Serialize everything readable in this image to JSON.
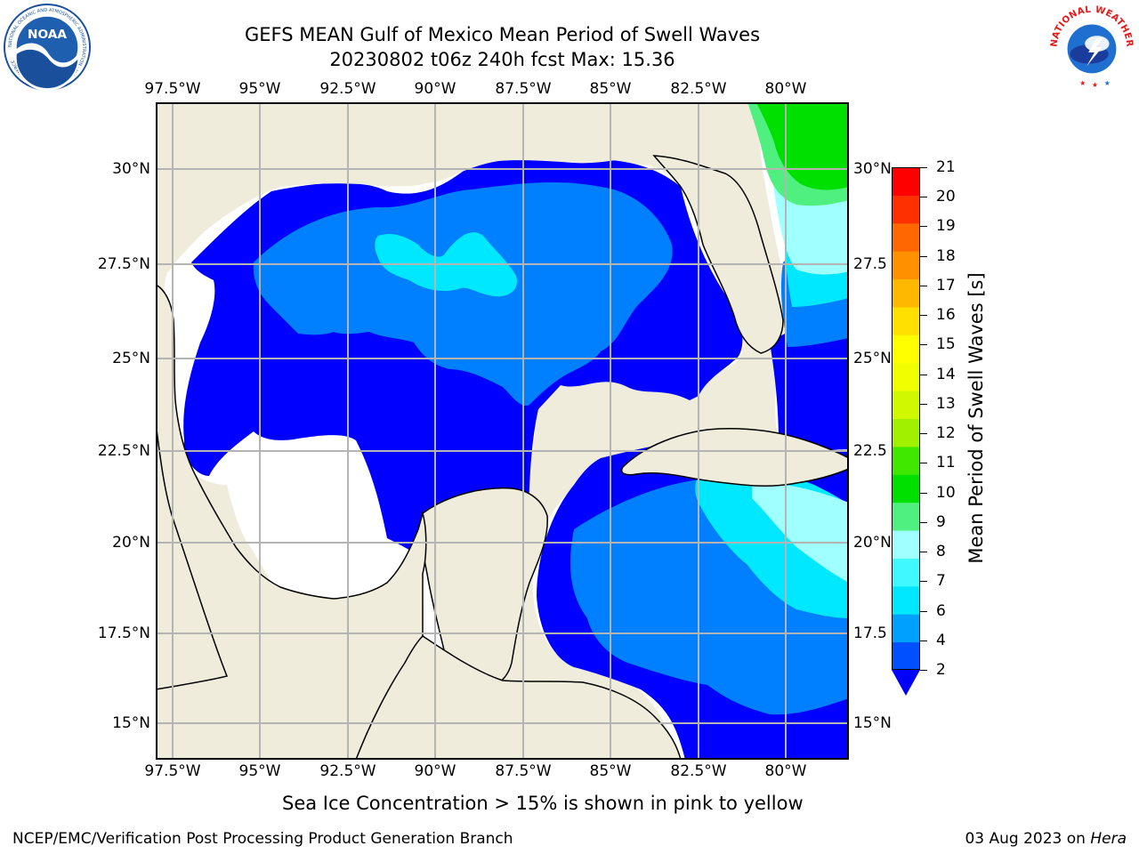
{
  "header": {
    "title_line1": "GEFS MEAN Gulf of Mexico Mean Period of Swell Waves",
    "title_line2": "20230802 t06z 240h fcst   Max: 15.36"
  },
  "logos": {
    "left": "NOAA",
    "left_ring": "NATIONAL OCEANIC AND ATMOSPHERIC ADMINISTRATION · U.S. DEPARTMENT OF COMMERCE",
    "right_ring": "NATIONAL WEATHER SERVICE"
  },
  "map": {
    "lon_labels": [
      "97.5°W",
      "95°W",
      "92.5°W",
      "90°W",
      "87.5°W",
      "85°W",
      "82.5°W",
      "80°W"
    ],
    "lat_labels_left": [
      "30°N",
      "27.5°N",
      "25°N",
      "22.5°N",
      "20°N",
      "17.5°N",
      "15°N"
    ],
    "lat_labels_right": [
      "30°N",
      "27.5",
      "25°N",
      "22.5",
      "20°N",
      "17.5",
      "15°N"
    ],
    "colors": {
      "land": "#efecdc",
      "ocean_empty": "#ffffff",
      "grid": "#b4b4b4",
      "coast": "#000000"
    }
  },
  "colorbar": {
    "title": "Mean Period of Swell Waves [s]",
    "ticks": [
      "21",
      "20",
      "19",
      "18",
      "17",
      "16",
      "15",
      "14",
      "13",
      "12",
      "11",
      "10",
      "9",
      "8",
      "7",
      "6",
      "4",
      "2"
    ],
    "colors_bottom_to_top": [
      "#0050ff",
      "#00a0ff",
      "#00e8ff",
      "#40f8ff",
      "#a0ffff",
      "#50f080",
      "#00e000",
      "#40e800",
      "#a0f000",
      "#d0f800",
      "#f0ff00",
      "#ffff00",
      "#ffe000",
      "#ffb800",
      "#ff9000",
      "#ff6800",
      "#ff3000",
      "#ff0000"
    ],
    "extend_color": "#0000ff"
  },
  "footer": {
    "note": "Sea Ice Concentration > 15% is shown in pink to yellow",
    "credit": "NCEP/EMC/Verification Post Processing Product Generation Branch",
    "date": "03 Aug 2023 on ",
    "machine": "Hera"
  }
}
